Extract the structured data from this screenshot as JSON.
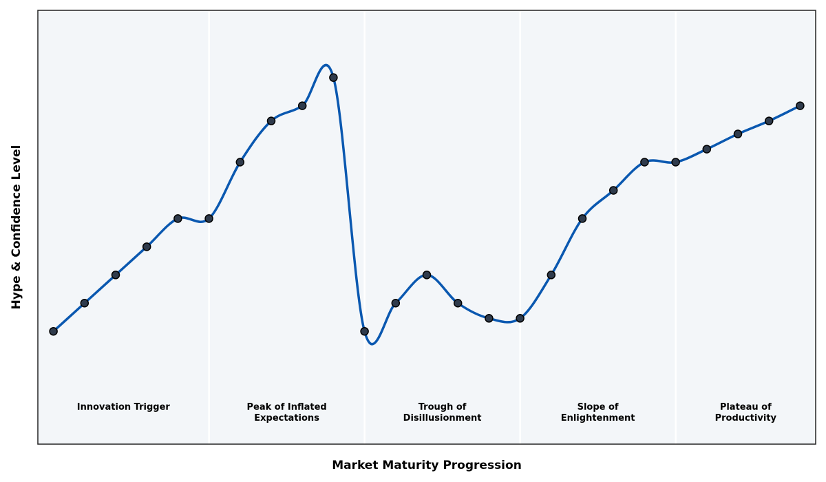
{
  "chart_data": {
    "type": "line",
    "title": "",
    "xlabel": "Market Maturity Progression",
    "ylabel": "Hype & Confidence Level",
    "x_ticks_visible": false,
    "y_ticks_visible": false,
    "grid": false,
    "ylim": [
      0,
      100
    ],
    "xlim": [
      -0.5,
      24.5
    ],
    "colors": {
      "line": "#0a58b0",
      "marker_fill": "#2f3b4c",
      "marker_edge": "#000000",
      "plot_background": "#f3f6f9",
      "phase_separator": "#ffffff",
      "frame": "#222222"
    },
    "phases": [
      {
        "lines": [
          "Innovation Trigger"
        ],
        "x_start": -0.5,
        "x_end": 5
      },
      {
        "lines": [
          "Peak of Inflated",
          "Expectations"
        ],
        "x_start": 5,
        "x_end": 10
      },
      {
        "lines": [
          "Trough of",
          "Disillusionment"
        ],
        "x_start": 10,
        "x_end": 15
      },
      {
        "lines": [
          "Slope of",
          "Enlightenment"
        ],
        "x_start": 15,
        "x_end": 20
      },
      {
        "lines": [
          "Plateau of",
          "Productivity"
        ],
        "x_start": 20,
        "x_end": 24.5
      }
    ],
    "series": [
      {
        "x": [
          0,
          1,
          2,
          3,
          4,
          5,
          6,
          7,
          8,
          9,
          10,
          11,
          12,
          13,
          14,
          15,
          16,
          17,
          18,
          19,
          20,
          21,
          22,
          23,
          24
        ],
        "values": [
          26,
          32.5,
          39,
          45.5,
          52,
          52,
          65,
          74.5,
          78,
          84.5,
          26,
          32.5,
          39,
          32.5,
          29,
          29,
          39,
          52,
          58.5,
          65,
          65,
          68,
          71.5,
          74.5,
          78
        ]
      }
    ]
  }
}
